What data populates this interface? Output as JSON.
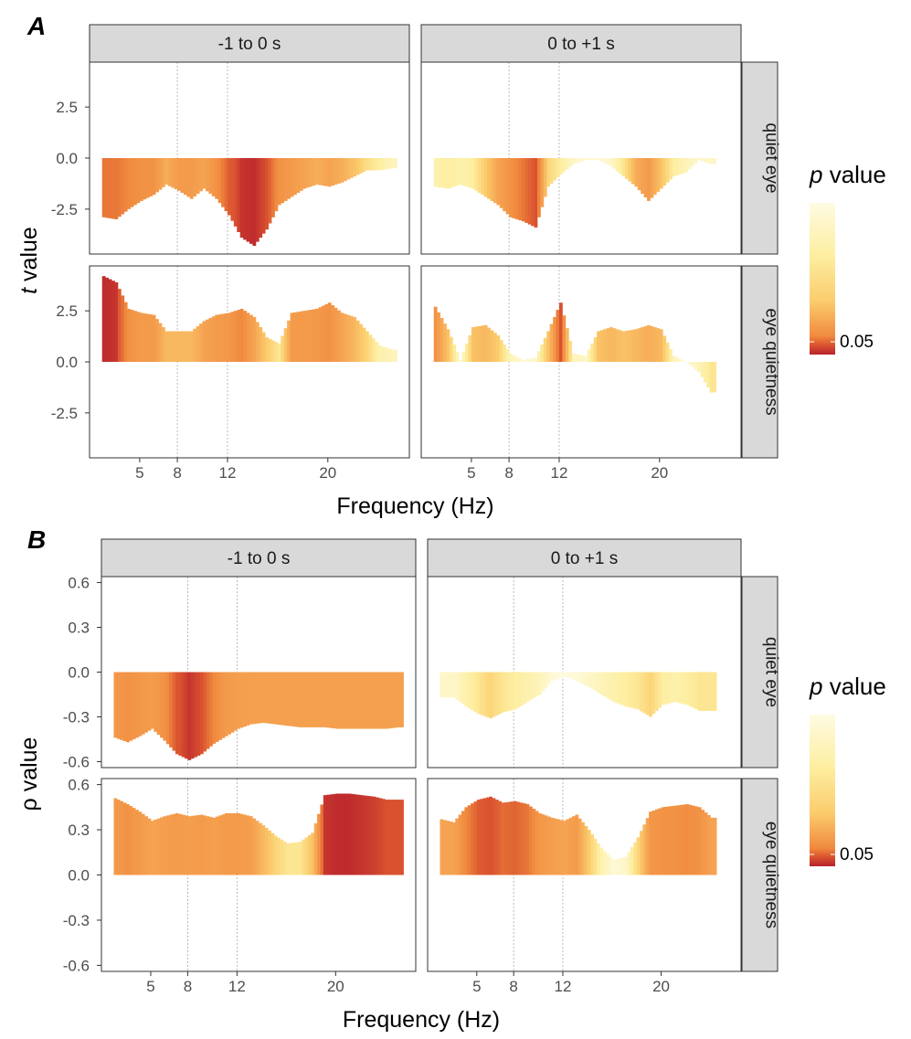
{
  "figure": {
    "panels": [
      {
        "letter": "A",
        "y_axis_label_italic": "t",
        "y_axis_label_rest": " value",
        "x_axis_label": "Frequency (Hz)",
        "col_strips": [
          "-1 to 0 s",
          "0  to +1 s"
        ],
        "row_strips": [
          "quiet eye",
          "eye quietness"
        ],
        "legend_title_italic": "p",
        "legend_title_rest": " value",
        "legend_tick": "0.05",
        "y_ticks": [
          2.5,
          0.0,
          -2.5
        ],
        "y_tick_labels": [
          "2.5",
          "0.0",
          "-2.5"
        ],
        "ylim": [
          -4.7,
          4.7
        ],
        "x_ticks": [
          5,
          8,
          12,
          20
        ],
        "x_tick_labels": [
          "5",
          "8",
          "12",
          "20"
        ],
        "xlim": [
          1,
          26.5
        ]
      },
      {
        "letter": "B",
        "y_axis_label_italic": "",
        "y_axis_label_rest": "ρ value",
        "x_axis_label": "Frequency (Hz)",
        "col_strips": [
          "-1 to 0 s",
          "0  to +1 s"
        ],
        "row_strips": [
          "quiet eye",
          "eye quietness"
        ],
        "legend_title_italic": "p",
        "legend_title_rest": " value",
        "legend_tick": "0.05",
        "y_ticks": [
          0.6,
          0.3,
          0.0,
          -0.3,
          -0.6
        ],
        "y_tick_labels": [
          "0.6",
          "0.3",
          "0.0",
          "-0.3",
          "-0.6"
        ],
        "ylim": [
          -0.64,
          0.64
        ],
        "x_ticks": [
          5,
          8,
          12,
          20
        ],
        "x_tick_labels": [
          "5",
          "8",
          "12",
          "20"
        ],
        "xlim": [
          1,
          26.5
        ]
      }
    ],
    "reference_lines_hz": [
      8,
      12
    ]
  },
  "chart_data": [
    {
      "type": "area",
      "panel": "A",
      "facet_columns": [
        "-1 to 0 s",
        "0  to +1 s"
      ],
      "facet_rows": [
        "quiet eye",
        "eye quietness"
      ],
      "x_name": "Frequency (Hz)",
      "y_name": "t value",
      "color_encodes": "p value",
      "colorscale": [
        "#b8222e",
        "#d9512f",
        "#f08a3e",
        "#f5a352",
        "#fbcc6c",
        "#fdeea0",
        "#fefbe3"
      ],
      "x": [
        2,
        3,
        4,
        5,
        6,
        7,
        8,
        9,
        10,
        11,
        12,
        13,
        14,
        15,
        16,
        17,
        18,
        19,
        20,
        21,
        22,
        23,
        24,
        25,
        26
      ],
      "series": [
        {
          "facet_row": "quiet eye",
          "facet_col": "-1 to 0 s",
          "values": [
            -2.9,
            -3.0,
            -2.5,
            -2.1,
            -1.8,
            -1.3,
            -1.6,
            -2.0,
            -1.5,
            -2.0,
            -2.8,
            -3.9,
            -4.3,
            -3.5,
            -2.3,
            -1.9,
            -1.5,
            -1.3,
            -1.4,
            -1.2,
            -0.9,
            -0.6,
            -0.6,
            -0.5,
            null
          ],
          "p_values": [
            0.15,
            0.15,
            0.2,
            0.25,
            0.25,
            0.4,
            0.3,
            0.3,
            0.35,
            0.25,
            0.08,
            0.02,
            0.01,
            0.05,
            0.25,
            0.3,
            0.35,
            0.4,
            0.35,
            0.4,
            0.5,
            0.65,
            0.75,
            0.85,
            null
          ]
        },
        {
          "facet_row": "quiet eye",
          "facet_col": "0  to +1 s",
          "values": [
            -1.4,
            -1.5,
            -1.3,
            -1.5,
            -1.9,
            -2.3,
            -2.9,
            -3.1,
            -3.4,
            -1.4,
            -0.8,
            -0.3,
            -0.1,
            -0.1,
            -0.4,
            -0.9,
            -1.4,
            -2.1,
            -1.5,
            -0.9,
            -0.7,
            -0.1,
            -0.3,
            null,
            null
          ],
          "p_values": [
            0.8,
            0.75,
            0.8,
            0.75,
            0.55,
            0.35,
            0.25,
            0.15,
            0.05,
            0.6,
            0.75,
            0.9,
            0.95,
            0.95,
            0.9,
            0.7,
            0.4,
            0.3,
            0.5,
            0.75,
            0.85,
            0.9,
            0.9,
            null,
            null
          ]
        },
        {
          "facet_row": "eye quietness",
          "facet_col": "-1 to 0 s",
          "values": [
            4.2,
            3.9,
            2.6,
            2.4,
            2.3,
            1.5,
            1.5,
            1.5,
            2.0,
            2.3,
            2.4,
            2.6,
            2.2,
            1.2,
            0.9,
            2.4,
            2.5,
            2.6,
            2.9,
            2.4,
            2.2,
            1.5,
            0.8,
            0.6,
            null
          ],
          "p_values": [
            0.01,
            0.02,
            0.25,
            0.3,
            0.3,
            0.45,
            0.45,
            0.45,
            0.35,
            0.3,
            0.28,
            0.2,
            0.35,
            0.55,
            0.7,
            0.3,
            0.3,
            0.28,
            0.25,
            0.35,
            0.45,
            0.6,
            0.8,
            0.85,
            null
          ]
        },
        {
          "facet_row": "eye quietness",
          "facet_col": "0  to +1 s",
          "values": [
            2.7,
            1.6,
            0.1,
            1.7,
            1.8,
            1.3,
            0.4,
            0.1,
            0.2,
            1.5,
            2.9,
            0.4,
            0.3,
            1.5,
            1.7,
            1.5,
            1.6,
            1.8,
            1.6,
            0.3,
            0.0,
            -0.5,
            -1.5,
            null,
            null
          ],
          "p_values": [
            0.25,
            0.5,
            0.95,
            0.5,
            0.45,
            0.55,
            0.85,
            0.95,
            0.9,
            0.5,
            0.05,
            0.85,
            0.9,
            0.5,
            0.45,
            0.5,
            0.45,
            0.4,
            0.45,
            0.85,
            0.95,
            0.85,
            0.7,
            null,
            null
          ]
        }
      ]
    },
    {
      "type": "area",
      "panel": "B",
      "facet_columns": [
        "-1 to 0 s",
        "0  to +1 s"
      ],
      "facet_rows": [
        "quiet eye",
        "eye quietness"
      ],
      "x_name": "Frequency (Hz)",
      "y_name": "ρ value",
      "color_encodes": "p value",
      "colorscale": [
        "#b8222e",
        "#d9512f",
        "#f08a3e",
        "#f5a352",
        "#fbcc6c",
        "#fdeea0",
        "#fefbe3"
      ],
      "x": [
        2,
        3,
        4,
        5,
        6,
        7,
        8,
        9,
        10,
        11,
        12,
        13,
        14,
        15,
        16,
        17,
        18,
        19,
        20,
        21,
        22,
        23,
        24,
        25,
        26
      ],
      "series": [
        {
          "facet_row": "quiet eye",
          "facet_col": "-1 to 0 s",
          "values": [
            -0.44,
            -0.47,
            -0.43,
            -0.38,
            -0.46,
            -0.55,
            -0.59,
            -0.55,
            -0.48,
            -0.43,
            -0.38,
            -0.35,
            -0.34,
            -0.35,
            -0.36,
            -0.37,
            -0.37,
            -0.37,
            -0.38,
            -0.38,
            -0.38,
            -0.38,
            -0.38,
            -0.37,
            null
          ],
          "p_values": [
            0.28,
            0.25,
            0.28,
            0.3,
            0.25,
            0.06,
            0.02,
            0.05,
            0.2,
            0.3,
            0.32,
            0.33,
            0.33,
            0.33,
            0.33,
            0.33,
            0.33,
            0.33,
            0.33,
            0.33,
            0.33,
            0.33,
            0.33,
            0.33,
            null
          ]
        },
        {
          "facet_row": "quiet eye",
          "facet_col": "0  to +1 s",
          "values": [
            -0.17,
            -0.17,
            -0.23,
            -0.28,
            -0.31,
            -0.27,
            -0.25,
            -0.2,
            -0.15,
            -0.06,
            -0.03,
            -0.06,
            -0.1,
            -0.15,
            -0.2,
            -0.23,
            -0.25,
            -0.3,
            -0.22,
            -0.2,
            -0.22,
            -0.26,
            -0.26,
            null,
            null
          ],
          "p_values": [
            0.9,
            0.9,
            0.8,
            0.7,
            0.6,
            0.7,
            0.75,
            0.8,
            0.85,
            0.95,
            0.98,
            0.95,
            0.9,
            0.85,
            0.8,
            0.75,
            0.7,
            0.6,
            0.75,
            0.8,
            0.75,
            0.7,
            0.7,
            null,
            null
          ]
        },
        {
          "facet_row": "eye quietness",
          "facet_col": "-1 to 0 s",
          "values": [
            0.51,
            0.47,
            0.42,
            0.36,
            0.39,
            0.41,
            0.39,
            0.4,
            0.38,
            0.41,
            0.41,
            0.39,
            0.33,
            0.26,
            0.21,
            0.22,
            0.28,
            0.53,
            0.54,
            0.54,
            0.53,
            0.52,
            0.5,
            0.5,
            null
          ],
          "p_values": [
            0.3,
            0.25,
            0.3,
            0.35,
            0.32,
            0.3,
            0.32,
            0.3,
            0.33,
            0.3,
            0.3,
            0.32,
            0.45,
            0.6,
            0.7,
            0.7,
            0.5,
            0.02,
            0.01,
            0.01,
            0.02,
            0.03,
            0.05,
            0.05,
            null
          ]
        },
        {
          "facet_row": "eye quietness",
          "facet_col": "0  to +1 s",
          "values": [
            0.37,
            0.35,
            0.45,
            0.5,
            0.52,
            0.48,
            0.49,
            0.47,
            0.41,
            0.38,
            0.36,
            0.4,
            0.3,
            0.18,
            0.1,
            0.12,
            0.25,
            0.42,
            0.45,
            0.46,
            0.47,
            0.45,
            0.38,
            null,
            null
          ],
          "p_values": [
            0.35,
            0.35,
            0.2,
            0.08,
            0.05,
            0.12,
            0.1,
            0.15,
            0.28,
            0.32,
            0.35,
            0.3,
            0.55,
            0.8,
            0.95,
            0.9,
            0.6,
            0.28,
            0.25,
            0.25,
            0.22,
            0.25,
            0.35,
            null,
            null
          ]
        }
      ]
    }
  ]
}
